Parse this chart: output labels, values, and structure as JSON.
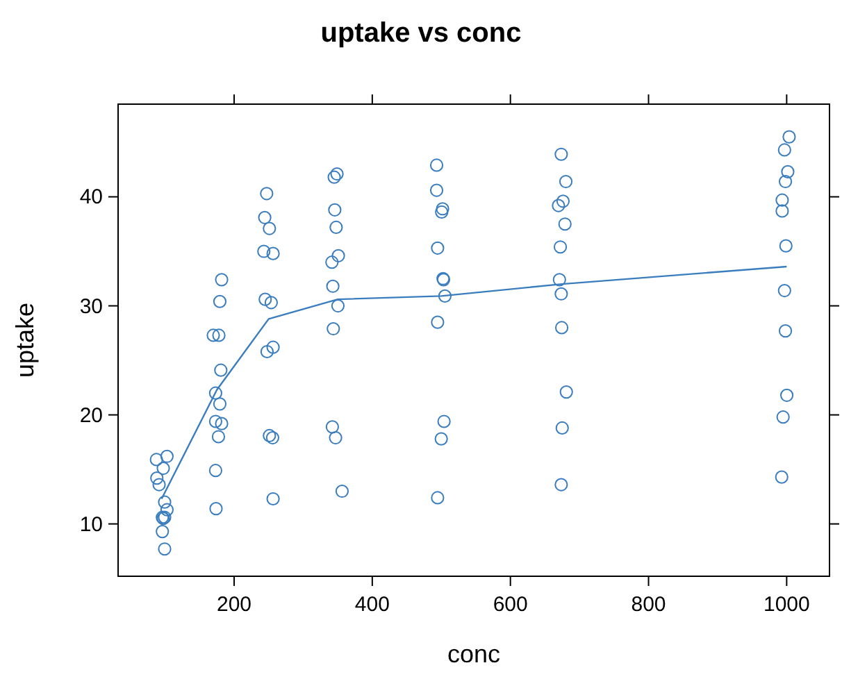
{
  "chart_data": {
    "type": "scatter",
    "title": "uptake vs conc",
    "xlabel": "conc",
    "ylabel": "uptake",
    "xlim": [
      32,
      1062
    ],
    "ylim": [
      5.2,
      48.5
    ],
    "xticks": [
      200,
      400,
      600,
      800,
      1000
    ],
    "yticks": [
      10,
      20,
      30,
      40
    ],
    "grid": false,
    "marker": "circle",
    "series": [
      {
        "color": "#3a7dbf",
        "x": [
          87.5,
          102.8,
          97.4,
          88.1,
          91.4,
          99.4,
          102.8,
          96.1,
          99.4,
          97.4,
          96.1,
          99.4,
          181.9,
          179.3,
          169.8,
          177.9,
          180.7,
          173.2,
          179.3,
          173.2,
          181.9,
          177.3,
          173.2,
          173.8,
          247.1,
          244.3,
          251.1,
          243,
          256.4,
          245,
          253.7,
          256.4,
          247.7,
          251.1,
          255.7,
          256.4,
          348.9,
          344.9,
          345.7,
          347.7,
          350.9,
          341.6,
          342.9,
          350.3,
          343.6,
          342.2,
          346.9,
          356.3,
          493.2,
          493.2,
          501.8,
          500.5,
          494.6,
          502.5,
          503.2,
          505.2,
          494.6,
          503.9,
          499.9,
          494.6,
          673.6,
          680.3,
          676.2,
          669.6,
          679.0,
          672.3,
          671.0,
          673.6,
          674.3,
          681.0,
          675.0,
          673.6,
          1003.6,
          996.9,
          1001.6,
          998.2,
          993.5,
          993.5,
          998.9,
          996.9,
          998.2,
          1000.2,
          994.8,
          992.8
        ],
        "values": [
          15.9,
          16.2,
          15.1,
          14.2,
          13.6,
          12.0,
          11.3,
          10.6,
          10.6,
          10.5,
          9.3,
          7.7,
          32.4,
          30.4,
          27.3,
          27.3,
          24.1,
          22.0,
          21.0,
          19.4,
          19.2,
          18.0,
          14.9,
          11.4,
          40.3,
          38.1,
          37.1,
          35.0,
          34.8,
          30.6,
          30.3,
          26.2,
          25.8,
          18.1,
          17.9,
          12.3,
          42.1,
          41.8,
          38.8,
          37.2,
          34.6,
          34.0,
          31.8,
          30.0,
          27.9,
          18.9,
          17.9,
          13.0,
          42.9,
          40.6,
          38.9,
          38.6,
          35.3,
          32.5,
          32.4,
          30.9,
          28.5,
          19.4,
          17.8,
          12.4,
          43.9,
          41.4,
          39.6,
          39.2,
          37.5,
          35.4,
          32.4,
          31.1,
          28.0,
          22.1,
          18.8,
          13.6,
          45.5,
          44.3,
          42.3,
          41.4,
          39.7,
          38.7,
          35.5,
          31.4,
          27.7,
          21.8,
          19.8,
          14.3
        ]
      },
      {
        "type": "line",
        "color": "#3a7dbf",
        "marker": "none",
        "line_style": "solid",
        "x": [
          95,
          175,
          250,
          350,
          500,
          675,
          1000
        ],
        "values": [
          12.3,
          22.3,
          28.8,
          30.6,
          30.9,
          32.0,
          33.6
        ]
      }
    ]
  }
}
